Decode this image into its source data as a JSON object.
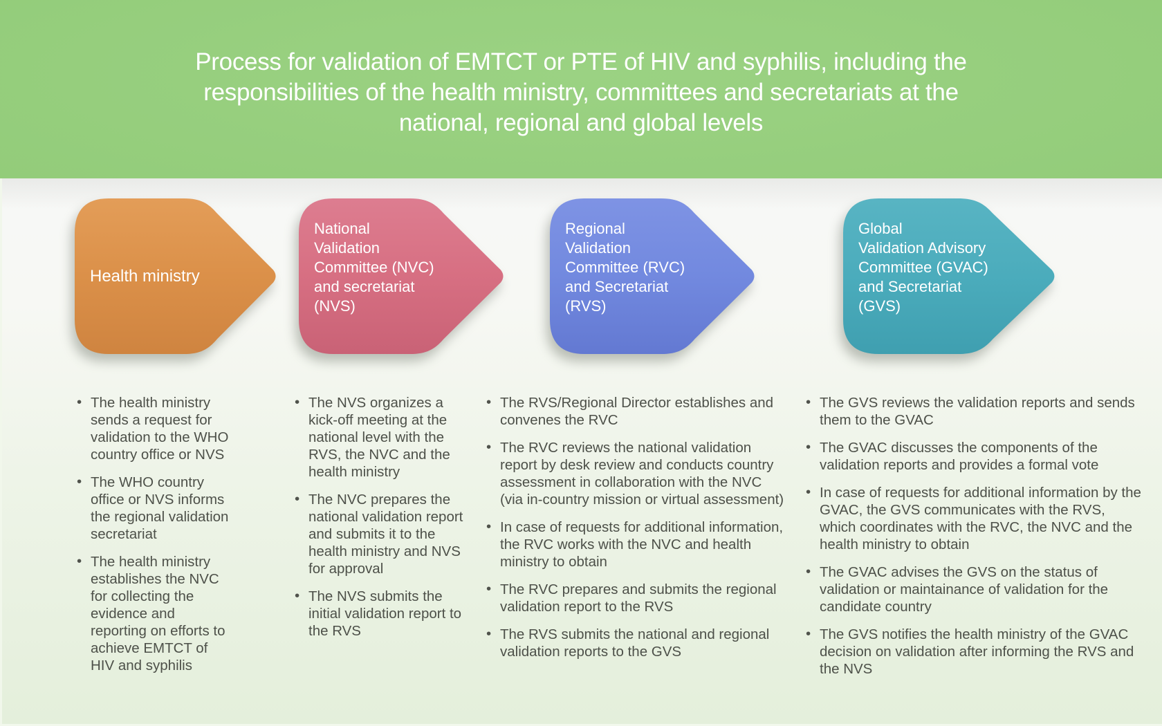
{
  "title": "Process for validation of EMTCT or PTE of HIV and syphilis, including the\nresponsibilities of the health ministry, committees and secretariats at the\nnational, regional and global levels",
  "colors": {
    "banner_green": "#93cc7a",
    "background_bottom_green": "#e4efdb",
    "bullet_text": "#4d5049",
    "label_text": "#ffffff"
  },
  "columns": [
    {
      "label": "Health ministry",
      "color": "#db9049",
      "color_light": "#e39d58",
      "color_dark": "#cf8440",
      "bullets": [
        "The health ministry sends a request for validation to the WHO country office or NVS",
        "The WHO country office or NVS informs the regional validation secretariat",
        "The health ministry establishes the NVC for collecting the evidence and reporting on efforts to achieve EMTCT of HIV and syphilis"
      ]
    },
    {
      "label": "National\nValidation\nCommittee (NVC)\nand secretariat\n(NVS)",
      "color": "#d76f82",
      "color_light": "#dd7d90",
      "color_dark": "#c96276",
      "bullets": [
        "The NVS organizes a kick-off meeting at the national level with the RVS, the NVC and the health ministry",
        "The NVC prepares the national validation report and submits it to the health ministry and NVS for approval",
        "The NVS submits the initial validation report to the RVS"
      ]
    },
    {
      "label": "Regional\nValidation\nCommittee (RVC)\nand Secretariat\n(RVS)",
      "color": "#7289df",
      "color_light": "#7e93e4",
      "color_dark": "#6379d2",
      "bullets": [
        "The RVS/Regional Director establishes and convenes the RVC",
        "The RVC reviews the national validation report by desk review and conducts country assessment in collaboration with the NVC (via in-country mission or virtual assessment)",
        "In case of requests for additional information, the RVC works with the NVC and health ministry to obtain",
        "The RVC prepares and submits the regional validation report to the RVS",
        "The RVS submits the national and regional validation reports to the GVS"
      ]
    },
    {
      "label": "Global\nValidation Advisory\nCommittee (GVAC)\nand Secretariat\n(GVS)",
      "color": "#4bacbc",
      "color_light": "#58b4c3",
      "color_dark": "#3f9fb0",
      "bullets": [
        "The GVS reviews the validation reports and sends them to the GVAC",
        "The GVAC discusses the components of the validation reports and provides a formal vote",
        "In case of requests for additional information by the GVAC, the GVS communicates with the RVS, which coordinates with the RVC, the NVC and the health ministry to obtain",
        "The GVAC advises the GVS on the status of validation or maintainance of validation for the candidate country",
        "The GVS notifies the health ministry of the GVAC decision on validation after informing the RVS and the NVS"
      ]
    }
  ]
}
